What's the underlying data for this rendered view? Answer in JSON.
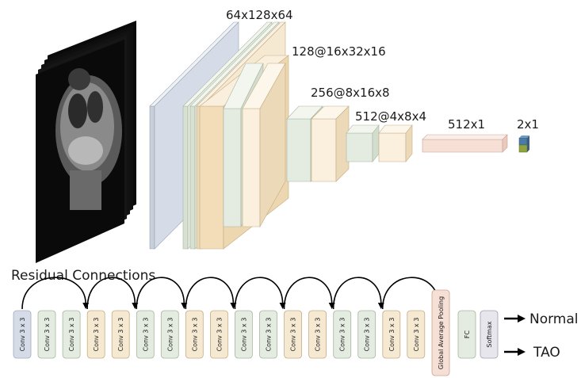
{
  "labels": {
    "l1": "64x128x64",
    "l2": "128@16x32x16",
    "l3": "256@8x16x8",
    "l4": "512@4x8x4",
    "l5": "512x1",
    "l6": "2x1"
  },
  "residual_title": "Residual Connections",
  "conv_label": "Conv 3 x 3",
  "gap_label": "Global Average Pooling",
  "fc_label": "FC",
  "softmax_label": "Softmax",
  "outputs": {
    "normal": "Normal",
    "tao": "TAO"
  },
  "colors": {
    "blue": "#d5dce8",
    "green": "#e4ece1",
    "beige": "#f6e9d2",
    "peach": "#f6e0d6",
    "softmax": "#e6e6ec",
    "output_top": "#4a7aa6",
    "output_bottom": "#8fa43c"
  },
  "conv_colors": [
    "blue",
    "green",
    "green",
    "beige",
    "beige",
    "green",
    "green",
    "beige",
    "beige",
    "green",
    "green",
    "beige",
    "beige",
    "green",
    "green",
    "beige",
    "beige"
  ]
}
